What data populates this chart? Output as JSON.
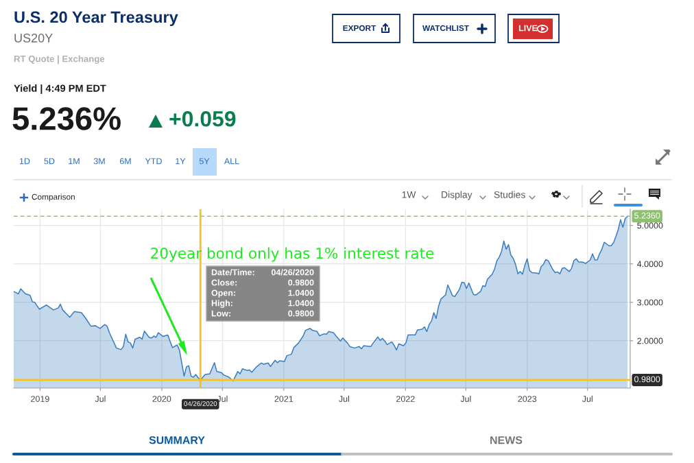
{
  "chart_data": {
    "type": "area",
    "title": "U.S. 20 Year Treasury",
    "subtitle": "US20Y",
    "color": "#3b7dbf",
    "x": [
      "2018-10-14",
      "2018-10-28",
      "2018-11-04",
      "2018-11-18",
      "2018-12-02",
      "2018-12-09",
      "2018-12-16",
      "2018-12-30",
      "2019-01-20",
      "2019-02-10",
      "2019-02-24",
      "2019-03-03",
      "2019-03-10",
      "2019-03-31",
      "2019-04-14",
      "2019-05-05",
      "2019-05-19",
      "2019-06-02",
      "2019-06-16",
      "2019-06-30",
      "2019-07-14",
      "2019-07-21",
      "2019-07-28",
      "2019-08-18",
      "2019-09-01",
      "2019-09-08",
      "2019-09-15",
      "2019-09-22",
      "2019-09-29",
      "2019-10-06",
      "2019-10-13",
      "2019-10-27",
      "2019-11-03",
      "2019-11-10",
      "2019-11-24",
      "2019-12-01",
      "2019-12-08",
      "2019-12-15",
      "2019-12-22",
      "2020-01-05",
      "2020-01-19",
      "2020-02-02",
      "2020-02-16",
      "2020-02-23",
      "2020-03-08",
      "2020-03-15",
      "2020-03-22",
      "2020-03-29",
      "2020-04-05",
      "2020-04-12",
      "2020-04-19",
      "2020-04-26",
      "2020-05-10",
      "2020-05-24",
      "2020-06-07",
      "2020-06-14",
      "2020-06-28",
      "2020-07-05",
      "2020-07-19",
      "2020-08-02",
      "2020-08-16",
      "2020-08-23",
      "2020-08-30",
      "2020-09-13",
      "2020-09-20",
      "2020-09-27",
      "2020-10-11",
      "2020-10-25",
      "2020-11-01",
      "2020-11-15",
      "2020-11-22",
      "2020-12-06",
      "2020-12-13",
      "2020-12-20",
      "2021-01-03",
      "2021-01-10",
      "2021-01-24",
      "2021-01-31",
      "2021-02-14",
      "2021-02-28",
      "2021-03-07",
      "2021-03-21",
      "2021-03-28",
      "2021-04-11",
      "2021-04-18",
      "2021-05-02",
      "2021-05-09",
      "2021-05-16",
      "2021-05-30",
      "2021-06-06",
      "2021-06-20",
      "2021-06-27",
      "2021-07-11",
      "2021-07-18",
      "2021-08-01",
      "2021-08-15",
      "2021-08-22",
      "2021-08-29",
      "2021-09-19",
      "2021-09-26",
      "2021-10-10",
      "2021-10-17",
      "2021-10-24",
      "2021-10-31",
      "2021-11-07",
      "2021-11-21",
      "2021-11-28",
      "2021-12-05",
      "2021-12-12",
      "2021-12-26",
      "2022-01-02",
      "2022-01-09",
      "2022-01-30",
      "2022-02-06",
      "2022-02-20",
      "2022-02-27",
      "2022-03-06",
      "2022-03-13",
      "2022-03-20",
      "2022-03-27",
      "2022-04-03",
      "2022-04-10",
      "2022-04-17",
      "2022-05-01",
      "2022-05-08",
      "2022-05-15",
      "2022-05-22",
      "2022-05-29",
      "2022-06-12",
      "2022-06-19",
      "2022-06-26",
      "2022-07-03",
      "2022-07-10",
      "2022-07-24",
      "2022-07-31",
      "2022-08-14",
      "2022-08-21",
      "2022-08-28",
      "2022-09-04",
      "2022-09-18",
      "2022-09-25",
      "2022-10-02",
      "2022-10-09",
      "2022-10-16",
      "2022-10-23",
      "2022-10-30",
      "2022-11-06",
      "2022-11-13",
      "2022-11-20",
      "2022-11-27",
      "2022-12-04",
      "2022-12-11",
      "2022-12-18",
      "2022-12-25",
      "2023-01-01",
      "2023-01-08",
      "2023-01-15",
      "2023-01-29",
      "2023-02-05",
      "2023-02-12",
      "2023-02-19",
      "2023-02-26",
      "2023-03-05",
      "2023-03-19",
      "2023-03-26",
      "2023-04-02",
      "2023-04-09",
      "2023-04-16",
      "2023-04-23",
      "2023-05-07",
      "2023-05-14",
      "2023-05-21",
      "2023-05-28",
      "2023-06-04",
      "2023-06-18",
      "2023-06-25",
      "2023-07-09",
      "2023-07-16",
      "2023-07-23",
      "2023-07-30",
      "2023-08-06",
      "2023-08-13",
      "2023-08-20",
      "2023-09-03",
      "2023-09-10",
      "2023-09-17",
      "2023-09-24",
      "2023-10-01",
      "2023-10-08",
      "2023-10-15",
      "2023-10-22",
      "2023-10-29"
    ],
    "values": [
      3.28,
      3.22,
      3.35,
      3.22,
      3.18,
      3.01,
      3.0,
      2.82,
      2.93,
      2.8,
      2.85,
      2.95,
      2.8,
      2.61,
      2.76,
      2.73,
      2.57,
      2.38,
      2.39,
      2.32,
      2.42,
      2.38,
      2.21,
      1.81,
      1.77,
      1.85,
      2.17,
      1.97,
      1.94,
      1.81,
      2.04,
      2.09,
      2.04,
      2.25,
      2.09,
      2.07,
      2.12,
      2.09,
      2.21,
      2.11,
      2.15,
      1.82,
      1.89,
      1.76,
      1.08,
      1.32,
      1.35,
      1.08,
      1.05,
      1.12,
      1.04,
      0.98,
      1.12,
      1.14,
      1.43,
      1.2,
      1.17,
      1.11,
      1.06,
      0.96,
      1.2,
      1.14,
      1.27,
      1.23,
      1.24,
      1.18,
      1.32,
      1.42,
      1.39,
      1.42,
      1.33,
      1.49,
      1.43,
      1.48,
      1.46,
      1.61,
      1.65,
      1.82,
      1.94,
      2.12,
      2.27,
      2.32,
      2.27,
      2.24,
      2.13,
      2.18,
      2.17,
      2.24,
      2.21,
      2.13,
      1.99,
      2.07,
      1.94,
      1.85,
      1.81,
      1.85,
      1.79,
      1.87,
      1.85,
      1.94,
      2.1,
      2.01,
      2.06,
      1.99,
      1.9,
      1.97,
      1.88,
      1.76,
      1.92,
      1.87,
      1.94,
      2.15,
      2.15,
      2.28,
      2.3,
      2.36,
      2.24,
      2.42,
      2.51,
      2.73,
      2.58,
      2.89,
      3.08,
      3.19,
      3.45,
      3.31,
      3.17,
      3.15,
      3.34,
      3.52,
      3.51,
      3.36,
      3.5,
      3.2,
      3.19,
      3.28,
      3.43,
      3.41,
      3.6,
      3.73,
      3.86,
      4.08,
      4.17,
      4.32,
      4.59,
      4.38,
      4.5,
      4.23,
      4.14,
      3.99,
      3.74,
      3.8,
      3.73,
      3.96,
      4.13,
      3.83,
      3.77,
      3.76,
      3.74,
      3.93,
      3.99,
      4.11,
      4.08,
      3.85,
      3.77,
      3.79,
      3.74,
      3.88,
      3.9,
      3.8,
      3.88,
      4.08,
      4.13,
      4.05,
      4.04,
      4.01,
      4.1,
      4.26,
      4.1,
      4.1,
      4.26,
      4.38,
      4.56,
      4.47,
      4.47,
      4.55,
      4.71,
      4.89,
      5.15,
      4.95,
      5.18,
      5.236
    ],
    "xlim": [
      "2018-10-14",
      "2023-11-06"
    ],
    "xticks": [
      {
        "value": "2019-01-01",
        "label": "2019"
      },
      {
        "value": "2019-07-01",
        "label": "Jul"
      },
      {
        "value": "2020-01-01",
        "label": "2020"
      },
      {
        "value": "2020-07-01",
        "label": "Jul"
      },
      {
        "value": "2021-01-01",
        "label": "2021"
      },
      {
        "value": "2021-07-01",
        "label": "Jul"
      },
      {
        "value": "2022-01-01",
        "label": "2022"
      },
      {
        "value": "2022-07-01",
        "label": "Jul"
      },
      {
        "value": "2023-01-01",
        "label": "2023"
      },
      {
        "value": "2023-07-01",
        "label": "Jul"
      }
    ],
    "ylim": [
      0.77,
      5.42
    ],
    "yticks": [
      {
        "value": 2,
        "label": "2.0000"
      },
      {
        "value": 3,
        "label": "3.0000"
      },
      {
        "value": 4,
        "label": "4.0000"
      },
      {
        "value": 5,
        "label": "5.0000"
      }
    ],
    "grid": true,
    "ref_lines": [
      {
        "axis": "y",
        "value": 5.236,
        "label": "5.2360",
        "color": "#8ec16e",
        "line_style": "dashed"
      },
      {
        "axis": "x",
        "value": "2020-04-26",
        "label": "04/26/2020",
        "color": "#f7c31a",
        "line_style": "solid"
      },
      {
        "axis": "y",
        "value": 0.98,
        "label": "0.9800",
        "color": "#f7c31a",
        "line_style": "solid"
      }
    ],
    "annotations": [
      "RT Quote | Exchange",
      "Yield | 4:49 PM EDT",
      "5.236%",
      "+0.059",
      "EXPORT",
      "WATCHLIST",
      "LIVE",
      "1D",
      "5D",
      "1M",
      "3M",
      "6M",
      "YTD",
      "1Y",
      "5Y",
      "ALL",
      "Comparison",
      "1W",
      "Display",
      "Studies",
      "SUMMARY",
      "NEWS",
      "20year bond only has 1% interest rate",
      "Date/Time:",
      "04/26/2020",
      "Close:",
      "0.9800",
      "Open:",
      "1.0400",
      "High:",
      "1.0400",
      "Low:",
      "0.9800"
    ]
  }
}
